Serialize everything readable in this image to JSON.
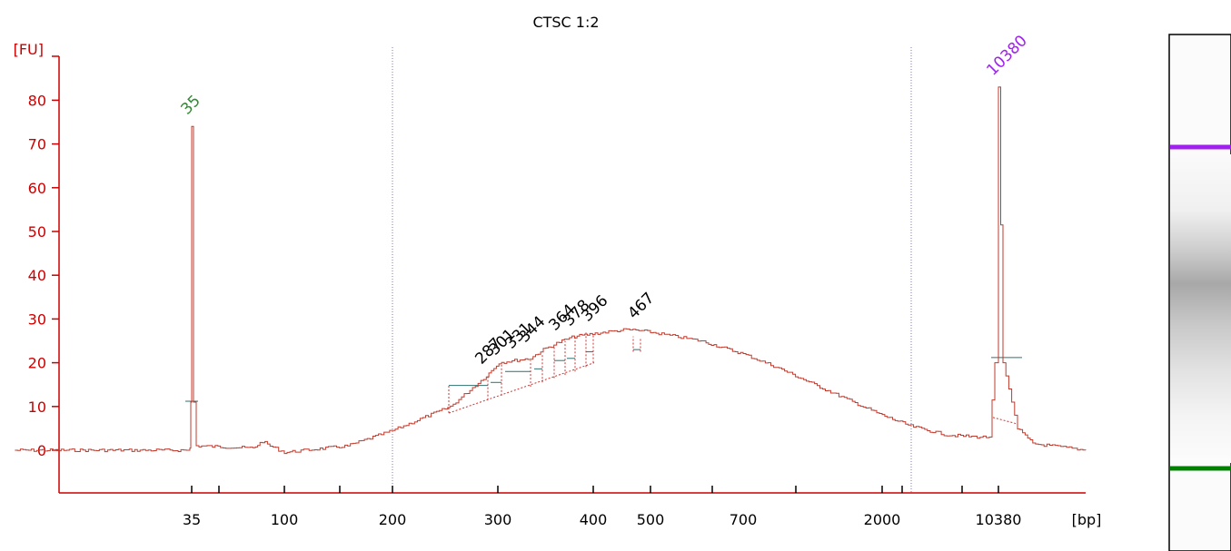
{
  "chart_data": {
    "type": "line",
    "title": "CTSC 1:2",
    "y_unit": "[FU]",
    "x_unit": "[bp]",
    "ylim": [
      -10,
      88
    ],
    "yticks": [
      0,
      10,
      20,
      30,
      40,
      50,
      60,
      70,
      80
    ],
    "xtick_labels": [
      "35",
      "100",
      "200",
      "300",
      "400",
      "500",
      "700",
      "2000",
      "10380"
    ],
    "grid": false,
    "series": [
      {
        "x": [
          35,
          35,
          35,
          35,
          35,
          35,
          70,
          78,
          85,
          100,
          150,
          200,
          250,
          287,
          301,
          331,
          344,
          364,
          378,
          396,
          420,
          450,
          467,
          500,
          600,
          700,
          900,
          1200,
          2000,
          3000,
          5000,
          8000,
          10000,
          10200,
          10380,
          10600,
          10900,
          12000,
          14000,
          15000
        ],
        "y": [
          0,
          0.5,
          11,
          74,
          11,
          1,
          0.5,
          2,
          1,
          -0.5,
          1,
          4.5,
          10,
          17,
          20,
          21,
          23,
          25,
          26,
          26.5,
          27,
          27.5,
          27.5,
          27,
          25,
          22,
          19,
          15,
          8,
          5.5,
          3.5,
          3,
          3,
          20,
          83,
          20,
          5,
          1.5,
          0.5,
          0
        ]
      }
    ],
    "peaks": [
      {
        "label": "35",
        "x": 35,
        "y": 74
      },
      {
        "label": "287",
        "x": 287,
        "y": 17
      },
      {
        "label": "301",
        "x": 301,
        "y": 18.5
      },
      {
        "label": "331",
        "x": 331,
        "y": 20
      },
      {
        "label": "344",
        "x": 344,
        "y": 21
      },
      {
        "label": "364",
        "x": 364,
        "y": 23
      },
      {
        "label": "378",
        "x": 378,
        "y": 24.5
      },
      {
        "label": "396",
        "x": 396,
        "y": 25.5
      },
      {
        "label": "467",
        "x": 467,
        "y": 25.5
      },
      {
        "label": "10380",
        "x": 10380,
        "y": 83
      }
    ],
    "gel_bands": [
      {
        "name": "upper-marker",
        "color": "#a020f0"
      },
      {
        "name": "lower-marker",
        "color": "#008000"
      }
    ],
    "colors": {
      "axis": "#cc0000",
      "trace": "#c0392b",
      "lower_marker_label": "#2e8b2e",
      "upper_marker_label": "#a020f0",
      "peak_label": "#000000",
      "baseline": "#2f6f6f"
    }
  }
}
